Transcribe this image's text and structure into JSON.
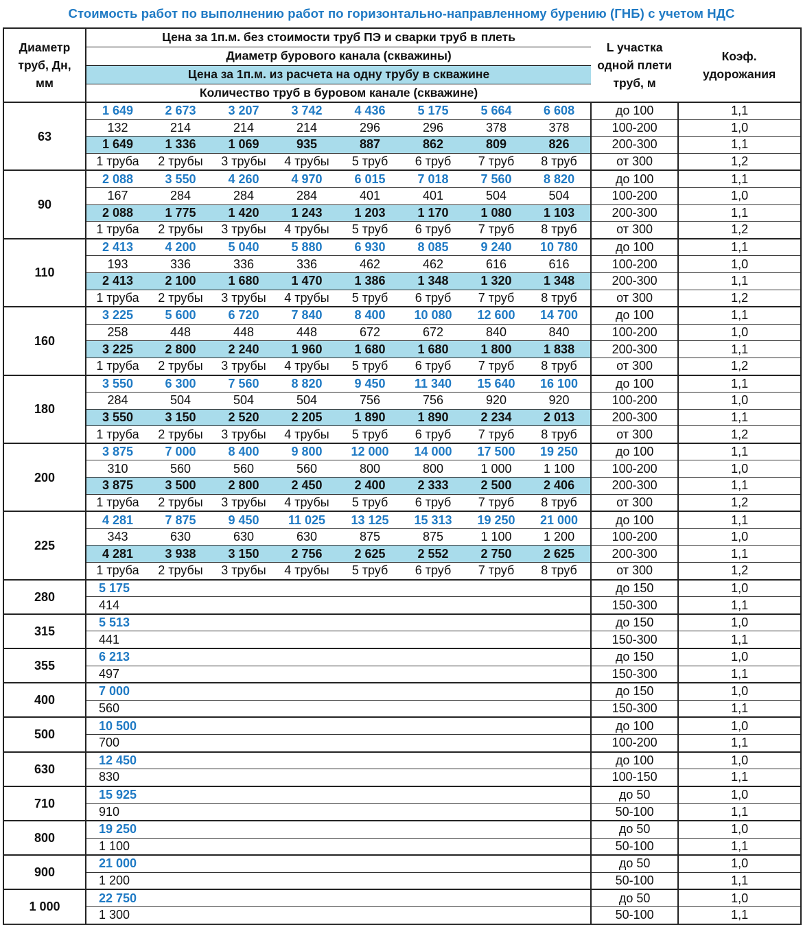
{
  "title": "Стоимость работ по выполнению работ по горизонтально-направленному бурению (ГНБ) с учетом НДС",
  "header": {
    "diameter_col": "Диаметр труб, Дн, мм",
    "price_line1": "Цена за 1п.м. без стоимости труб ПЭ и сварки труб в плеть",
    "price_line2": "Диаметр бурового канала (скважины)",
    "price_line3": "Цена за 1п.м. из расчета на одну трубу в скважине",
    "price_line4": "Количество труб в буровом канале (скважине)",
    "length_col": "L участка одной плети труб, м",
    "coef_col": "Коэф. удорожания"
  },
  "colors": {
    "blue": "#1f7ac4",
    "highlight": "#a9dceb"
  },
  "groups_multi": [
    {
      "d": "63",
      "rows": [
        [
          "1 649",
          "2 673",
          "3 207",
          "3 742",
          "4 436",
          "5 175",
          "5 664",
          "6 608"
        ],
        [
          "132",
          "214",
          "214",
          "214",
          "296",
          "296",
          "378",
          "378"
        ],
        [
          "1 649",
          "1 336",
          "1 069",
          "935",
          "887",
          "862",
          "809",
          "826"
        ],
        [
          "1 труба",
          "2 трубы",
          "3 трубы",
          "4 трубы",
          "5 труб",
          "6 труб",
          "7 труб",
          "8 труб"
        ]
      ],
      "L": [
        "до 100",
        "100-200",
        "200-300",
        "от 300"
      ],
      "k": [
        "1,1",
        "1,0",
        "1,1",
        "1,2"
      ]
    },
    {
      "d": "90",
      "rows": [
        [
          "2 088",
          "3 550",
          "4 260",
          "4 970",
          "6 015",
          "7 018",
          "7 560",
          "8 820"
        ],
        [
          "167",
          "284",
          "284",
          "284",
          "401",
          "401",
          "504",
          "504"
        ],
        [
          "2 088",
          "1 775",
          "1 420",
          "1 243",
          "1 203",
          "1 170",
          "1 080",
          "1 103"
        ],
        [
          "1 труба",
          "2 трубы",
          "3 трубы",
          "4 трубы",
          "5 труб",
          "6 труб",
          "7 труб",
          "8 труб"
        ]
      ],
      "L": [
        "до 100",
        "100-200",
        "200-300",
        "от 300"
      ],
      "k": [
        "1,1",
        "1,0",
        "1,1",
        "1,2"
      ]
    },
    {
      "d": "110",
      "rows": [
        [
          "2 413",
          "4 200",
          "5 040",
          "5 880",
          "6 930",
          "8 085",
          "9 240",
          "10 780"
        ],
        [
          "193",
          "336",
          "336",
          "336",
          "462",
          "462",
          "616",
          "616"
        ],
        [
          "2 413",
          "2 100",
          "1 680",
          "1 470",
          "1 386",
          "1 348",
          "1 320",
          "1 348"
        ],
        [
          "1 труба",
          "2 трубы",
          "3 трубы",
          "4 трубы",
          "5 труб",
          "6 труб",
          "7 труб",
          "8 труб"
        ]
      ],
      "L": [
        "до 100",
        "100-200",
        "200-300",
        "от 300"
      ],
      "k": [
        "1,1",
        "1,0",
        "1,1",
        "1,2"
      ]
    },
    {
      "d": "160",
      "rows": [
        [
          "3 225",
          "5 600",
          "6 720",
          "7 840",
          "8 400",
          "10 080",
          "12 600",
          "14 700"
        ],
        [
          "258",
          "448",
          "448",
          "448",
          "672",
          "672",
          "840",
          "840"
        ],
        [
          "3 225",
          "2 800",
          "2 240",
          "1 960",
          "1 680",
          "1 680",
          "1 800",
          "1 838"
        ],
        [
          "1 труба",
          "2 трубы",
          "3 трубы",
          "4 трубы",
          "5 труб",
          "6 труб",
          "7 труб",
          "8 труб"
        ]
      ],
      "L": [
        "до 100",
        "100-200",
        "200-300",
        "от 300"
      ],
      "k": [
        "1,1",
        "1,0",
        "1,1",
        "1,2"
      ]
    },
    {
      "d": "180",
      "rows": [
        [
          "3 550",
          "6 300",
          "7 560",
          "8 820",
          "9 450",
          "11 340",
          "15 640",
          "16 100"
        ],
        [
          "284",
          "504",
          "504",
          "504",
          "756",
          "756",
          "920",
          "920"
        ],
        [
          "3 550",
          "3 150",
          "2 520",
          "2 205",
          "1 890",
          "1 890",
          "2 234",
          "2 013"
        ],
        [
          "1 труба",
          "2 трубы",
          "3 трубы",
          "4 трубы",
          "5 труб",
          "6 труб",
          "7 труб",
          "8 труб"
        ]
      ],
      "L": [
        "до 100",
        "100-200",
        "200-300",
        "от 300"
      ],
      "k": [
        "1,1",
        "1,0",
        "1,1",
        "1,2"
      ]
    },
    {
      "d": "200",
      "rows": [
        [
          "3 875",
          "7 000",
          "8 400",
          "9 800",
          "12 000",
          "14 000",
          "17 500",
          "19 250"
        ],
        [
          "310",
          "560",
          "560",
          "560",
          "800",
          "800",
          "1 000",
          "1 100"
        ],
        [
          "3 875",
          "3 500",
          "2 800",
          "2 450",
          "2 400",
          "2 333",
          "2 500",
          "2 406"
        ],
        [
          "1 труба",
          "2 трубы",
          "3 трубы",
          "4 трубы",
          "5 труб",
          "6 труб",
          "7 труб",
          "8 труб"
        ]
      ],
      "L": [
        "до 100",
        "100-200",
        "200-300",
        "от 300"
      ],
      "k": [
        "1,1",
        "1,0",
        "1,1",
        "1,2"
      ]
    },
    {
      "d": "225",
      "rows": [
        [
          "4 281",
          "7 875",
          "9 450",
          "11 025",
          "13 125",
          "15 313",
          "19 250",
          "21 000"
        ],
        [
          "343",
          "630",
          "630",
          "630",
          "875",
          "875",
          "1 100",
          "1 200"
        ],
        [
          "4 281",
          "3 938",
          "3 150",
          "2 756",
          "2 625",
          "2 552",
          "2 750",
          "2 625"
        ],
        [
          "1 труба",
          "2 трубы",
          "3 трубы",
          "4 трубы",
          "5 труб",
          "6 труб",
          "7 труб",
          "8 труб"
        ]
      ],
      "L": [
        "до 100",
        "100-200",
        "200-300",
        "от 300"
      ],
      "k": [
        "1,1",
        "1,0",
        "1,1",
        "1,2"
      ]
    }
  ],
  "groups_single": [
    {
      "d": "280",
      "price": "5 175",
      "diam": "414",
      "L": [
        "до 150",
        "150-300"
      ],
      "k": [
        "1,0",
        "1,1"
      ]
    },
    {
      "d": "315",
      "price": "5 513",
      "diam": "441",
      "L": [
        "до 150",
        "150-300"
      ],
      "k": [
        "1,0",
        "1,1"
      ]
    },
    {
      "d": "355",
      "price": "6 213",
      "diam": "497",
      "L": [
        "до 150",
        "150-300"
      ],
      "k": [
        "1,0",
        "1,1"
      ]
    },
    {
      "d": "400",
      "price": "7 000",
      "diam": "560",
      "L": [
        "до 150",
        "150-300"
      ],
      "k": [
        "1,0",
        "1,1"
      ]
    },
    {
      "d": "500",
      "price": "10 500",
      "diam": "700",
      "L": [
        "до 100",
        "100-200"
      ],
      "k": [
        "1,0",
        "1,1"
      ]
    },
    {
      "d": "630",
      "price": "12 450",
      "diam": "830",
      "L": [
        "до 100",
        "100-150"
      ],
      "k": [
        "1,0",
        "1,1"
      ]
    },
    {
      "d": "710",
      "price": "15 925",
      "diam": "910",
      "L": [
        "до 50",
        "50-100"
      ],
      "k": [
        "1,0",
        "1,1"
      ]
    },
    {
      "d": "800",
      "price": "19 250",
      "diam": "1 100",
      "L": [
        "до 50",
        "50-100"
      ],
      "k": [
        "1,0",
        "1,1"
      ]
    },
    {
      "d": "900",
      "price": "21 000",
      "diam": "1 200",
      "L": [
        "до 50",
        "50-100"
      ],
      "k": [
        "1,0",
        "1,1"
      ]
    },
    {
      "d": "1 000",
      "price": "22 750",
      "diam": "1 300",
      "L": [
        "до 50",
        "50-100"
      ],
      "k": [
        "1,0",
        "1,1"
      ]
    }
  ]
}
